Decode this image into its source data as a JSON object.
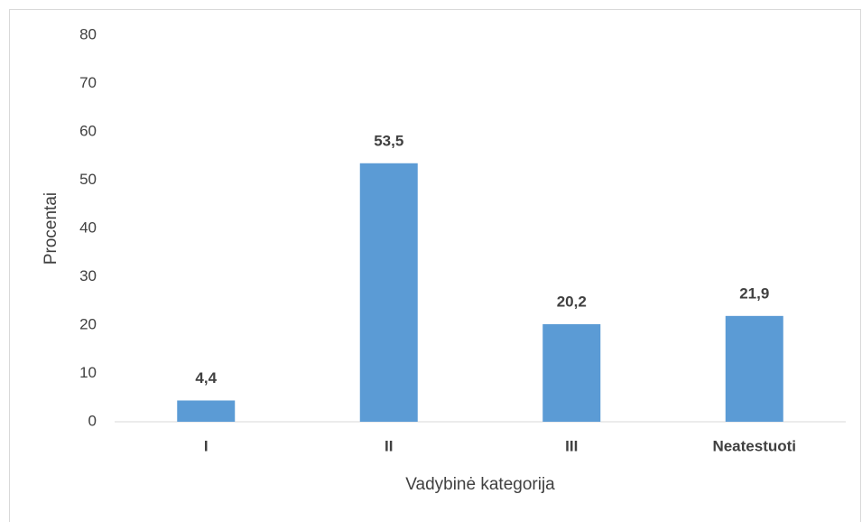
{
  "chart_data": {
    "type": "bar",
    "categories": [
      "I",
      "II",
      "III",
      "Neatestuoti"
    ],
    "values": [
      4.4,
      53.5,
      20.2,
      21.9
    ],
    "value_labels": [
      "4,4",
      "53,5",
      "20,2",
      "21,9"
    ],
    "color": "#5b9bd5",
    "xlabel": "Vadybinė kategorija",
    "ylabel": "Procentai",
    "ylim": [
      0,
      80
    ],
    "yticks": [
      0,
      10,
      20,
      30,
      40,
      50,
      60,
      70,
      80
    ],
    "grid": false
  }
}
